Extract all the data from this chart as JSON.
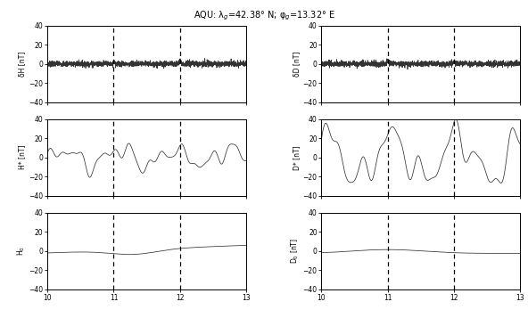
{
  "title": "AQU: λ$_{g}$=42.38° N; φ$_{g}$=13.32° E",
  "xlim": [
    10,
    13
  ],
  "ylim": [
    -40,
    40
  ],
  "xticks": [
    10,
    11,
    12,
    13
  ],
  "yticks": [
    -40,
    -20,
    0,
    20,
    40
  ],
  "vlines": [
    11,
    12
  ],
  "ylabel_left": [
    "δH [nT]",
    "H* [nT]",
    "H$_0$"
  ],
  "ylabel_right": [
    "δD [nT]",
    "D* [nT]",
    "D$_0$ [nT]"
  ],
  "line_color": "#333333",
  "vline_color": "black",
  "background": "white",
  "n_points": 2000
}
